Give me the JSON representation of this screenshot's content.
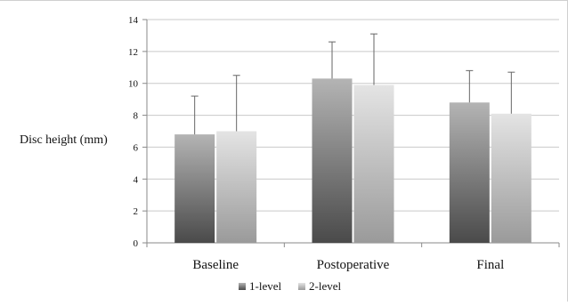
{
  "chart_data": {
    "type": "bar",
    "ylabel": "Disc height (mm)",
    "ylim": [
      0,
      14
    ],
    "yticks": [
      0,
      2,
      4,
      6,
      8,
      10,
      12,
      14
    ],
    "categories": [
      "Baseline",
      "Postoperative",
      "Final"
    ],
    "series": [
      {
        "name": "1-level",
        "values": [
          6.8,
          10.3,
          8.8
        ],
        "error": [
          2.4,
          2.3,
          2.0
        ]
      },
      {
        "name": "2-level",
        "values": [
          7.0,
          9.9,
          8.1
        ],
        "error": [
          3.5,
          3.2,
          2.6
        ]
      }
    ],
    "grid": true,
    "legend_position": "bottom-center",
    "colors": {
      "series1_top": "#b4b4b4",
      "series1_bottom": "#4a4a4a",
      "series2_top": "#e4e4e4",
      "series2_bottom": "#9a9a9a",
      "grid": "#c9c9c9",
      "axis": "#8a8a8a",
      "errorbar": "#666666"
    }
  }
}
